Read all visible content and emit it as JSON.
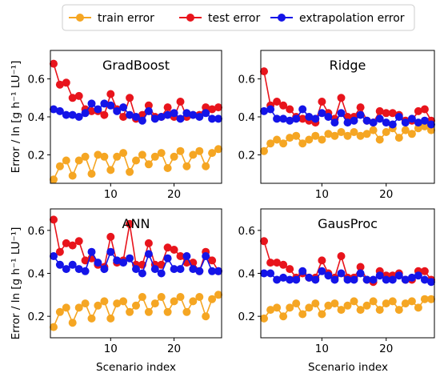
{
  "legend": {
    "placement": "top-center",
    "entries": [
      {
        "label": "train error",
        "color": "#f5a623"
      },
      {
        "label": "test error",
        "color": "#e8141c"
      },
      {
        "label": "extrapolation error",
        "color": "#1414e8"
      }
    ]
  },
  "axes_text": {
    "ylabel": "Error  /  ln [g h⁻¹ LU⁻¹]",
    "xlabel": "Scenario index"
  },
  "chart_data": [
    {
      "type": "line",
      "title": "GradBoost",
      "x": [
        1,
        2,
        3,
        4,
        5,
        6,
        7,
        8,
        9,
        10,
        11,
        12,
        13,
        14,
        15,
        16,
        17,
        18,
        19,
        20,
        21,
        22,
        23,
        24,
        25,
        26,
        27
      ],
      "xlim": [
        0.5,
        27.5
      ],
      "ylim": [
        0.05,
        0.75
      ],
      "xticks": [
        10,
        20
      ],
      "yticks": [
        0.2,
        0.4,
        0.6
      ],
      "series": [
        {
          "name": "train error",
          "color": "#f5a623",
          "values": [
            0.07,
            0.14,
            0.17,
            0.09,
            0.17,
            0.19,
            0.1,
            0.2,
            0.19,
            0.12,
            0.19,
            0.21,
            0.11,
            0.17,
            0.2,
            0.15,
            0.19,
            0.21,
            0.13,
            0.19,
            0.22,
            0.14,
            0.2,
            0.22,
            0.14,
            0.21,
            0.23
          ]
        },
        {
          "name": "test error",
          "color": "#e8141c",
          "values": [
            0.68,
            0.57,
            0.58,
            0.5,
            0.51,
            0.44,
            0.43,
            0.43,
            0.41,
            0.52,
            0.44,
            0.4,
            0.5,
            0.39,
            0.41,
            0.46,
            0.4,
            0.4,
            0.45,
            0.4,
            0.48,
            0.4,
            0.41,
            0.41,
            0.45,
            0.44,
            0.45
          ]
        },
        {
          "name": "extrapolation error",
          "color": "#1414e8",
          "values": [
            0.44,
            0.43,
            0.41,
            0.41,
            0.4,
            0.42,
            0.47,
            0.44,
            0.47,
            0.46,
            0.43,
            0.45,
            0.41,
            0.4,
            0.38,
            0.43,
            0.39,
            0.4,
            0.41,
            0.42,
            0.39,
            0.42,
            0.41,
            0.4,
            0.42,
            0.39,
            0.39
          ]
        }
      ]
    },
    {
      "type": "line",
      "title": "Ridge",
      "x": [
        1,
        2,
        3,
        4,
        5,
        6,
        7,
        8,
        9,
        10,
        11,
        12,
        13,
        14,
        15,
        16,
        17,
        18,
        19,
        20,
        21,
        22,
        23,
        24,
        25,
        26,
        27
      ],
      "xlim": [
        0.5,
        27.5
      ],
      "ylim": [
        0.05,
        0.75
      ],
      "xticks": [
        10,
        20
      ],
      "yticks": [
        0.2,
        0.4,
        0.6
      ],
      "series": [
        {
          "name": "train error",
          "color": "#f5a623",
          "values": [
            0.22,
            0.26,
            0.28,
            0.26,
            0.29,
            0.3,
            0.26,
            0.28,
            0.3,
            0.28,
            0.31,
            0.3,
            0.32,
            0.3,
            0.32,
            0.3,
            0.31,
            0.33,
            0.28,
            0.32,
            0.34,
            0.29,
            0.33,
            0.31,
            0.34,
            0.35,
            0.33
          ]
        },
        {
          "name": "test error",
          "color": "#e8141c",
          "values": [
            0.64,
            0.46,
            0.48,
            0.46,
            0.44,
            0.4,
            0.39,
            0.38,
            0.37,
            0.48,
            0.42,
            0.39,
            0.5,
            0.4,
            0.4,
            0.45,
            0.38,
            0.37,
            0.43,
            0.42,
            0.42,
            0.41,
            0.38,
            0.38,
            0.43,
            0.44,
            0.38
          ]
        },
        {
          "name": "extrapolation error",
          "color": "#1414e8",
          "values": [
            0.43,
            0.44,
            0.39,
            0.39,
            0.38,
            0.39,
            0.44,
            0.4,
            0.39,
            0.42,
            0.4,
            0.37,
            0.42,
            0.37,
            0.38,
            0.41,
            0.38,
            0.37,
            0.39,
            0.37,
            0.36,
            0.4,
            0.37,
            0.39,
            0.37,
            0.38,
            0.36
          ]
        }
      ]
    },
    {
      "type": "line",
      "title": "ANN",
      "x": [
        1,
        2,
        3,
        4,
        5,
        6,
        7,
        8,
        9,
        10,
        11,
        12,
        13,
        14,
        15,
        16,
        17,
        18,
        19,
        20,
        21,
        22,
        23,
        24,
        25,
        26,
        27
      ],
      "xlim": [
        0.5,
        27.5
      ],
      "ylim": [
        0.1,
        0.7
      ],
      "xticks": [
        10,
        20
      ],
      "yticks": [
        0.2,
        0.4,
        0.6
      ],
      "series": [
        {
          "name": "train error",
          "color": "#f5a623",
          "values": [
            0.15,
            0.22,
            0.24,
            0.17,
            0.24,
            0.26,
            0.19,
            0.25,
            0.27,
            0.19,
            0.26,
            0.27,
            0.22,
            0.25,
            0.29,
            0.22,
            0.26,
            0.29,
            0.22,
            0.27,
            0.29,
            0.22,
            0.27,
            0.29,
            0.2,
            0.28,
            0.3
          ]
        },
        {
          "name": "test error",
          "color": "#e8141c",
          "values": [
            0.65,
            0.5,
            0.54,
            0.53,
            0.55,
            0.46,
            0.47,
            0.44,
            0.43,
            0.57,
            0.45,
            0.46,
            0.63,
            0.44,
            0.44,
            0.54,
            0.44,
            0.44,
            0.52,
            0.51,
            0.48,
            0.45,
            0.45,
            0.41,
            0.5,
            0.46,
            0.41
          ]
        },
        {
          "name": "extrapolation error",
          "color": "#1414e8",
          "values": [
            0.48,
            0.44,
            0.42,
            0.44,
            0.42,
            0.41,
            0.5,
            0.45,
            0.42,
            0.5,
            0.46,
            0.45,
            0.47,
            0.42,
            0.4,
            0.49,
            0.42,
            0.4,
            0.47,
            0.42,
            0.42,
            0.48,
            0.42,
            0.41,
            0.48,
            0.41,
            0.41
          ]
        }
      ]
    },
    {
      "type": "line",
      "title": "GausProc",
      "x": [
        1,
        2,
        3,
        4,
        5,
        6,
        7,
        8,
        9,
        10,
        11,
        12,
        13,
        14,
        15,
        16,
        17,
        18,
        19,
        20,
        21,
        22,
        23,
        24,
        25,
        26,
        27
      ],
      "xlim": [
        0.5,
        27.5
      ],
      "ylim": [
        0.1,
        0.7
      ],
      "xticks": [
        10,
        20
      ],
      "yticks": [
        0.2,
        0.4,
        0.6
      ],
      "series": [
        {
          "name": "train error",
          "color": "#f5a623",
          "values": [
            0.19,
            0.23,
            0.24,
            0.2,
            0.24,
            0.26,
            0.21,
            0.24,
            0.26,
            0.21,
            0.25,
            0.26,
            0.23,
            0.25,
            0.27,
            0.23,
            0.25,
            0.27,
            0.23,
            0.26,
            0.27,
            0.23,
            0.26,
            0.27,
            0.24,
            0.28,
            0.28
          ]
        },
        {
          "name": "test error",
          "color": "#e8141c",
          "values": [
            0.55,
            0.45,
            0.45,
            0.44,
            0.42,
            0.38,
            0.4,
            0.38,
            0.38,
            0.46,
            0.4,
            0.38,
            0.48,
            0.38,
            0.38,
            0.43,
            0.37,
            0.36,
            0.41,
            0.39,
            0.39,
            0.4,
            0.37,
            0.37,
            0.41,
            0.41,
            0.37
          ]
        },
        {
          "name": "extrapolation error",
          "color": "#1414e8",
          "values": [
            0.4,
            0.4,
            0.37,
            0.38,
            0.37,
            0.37,
            0.41,
            0.38,
            0.37,
            0.41,
            0.39,
            0.37,
            0.4,
            0.37,
            0.37,
            0.4,
            0.37,
            0.37,
            0.39,
            0.37,
            0.37,
            0.39,
            0.37,
            0.38,
            0.39,
            0.37,
            0.36
          ]
        }
      ]
    }
  ]
}
